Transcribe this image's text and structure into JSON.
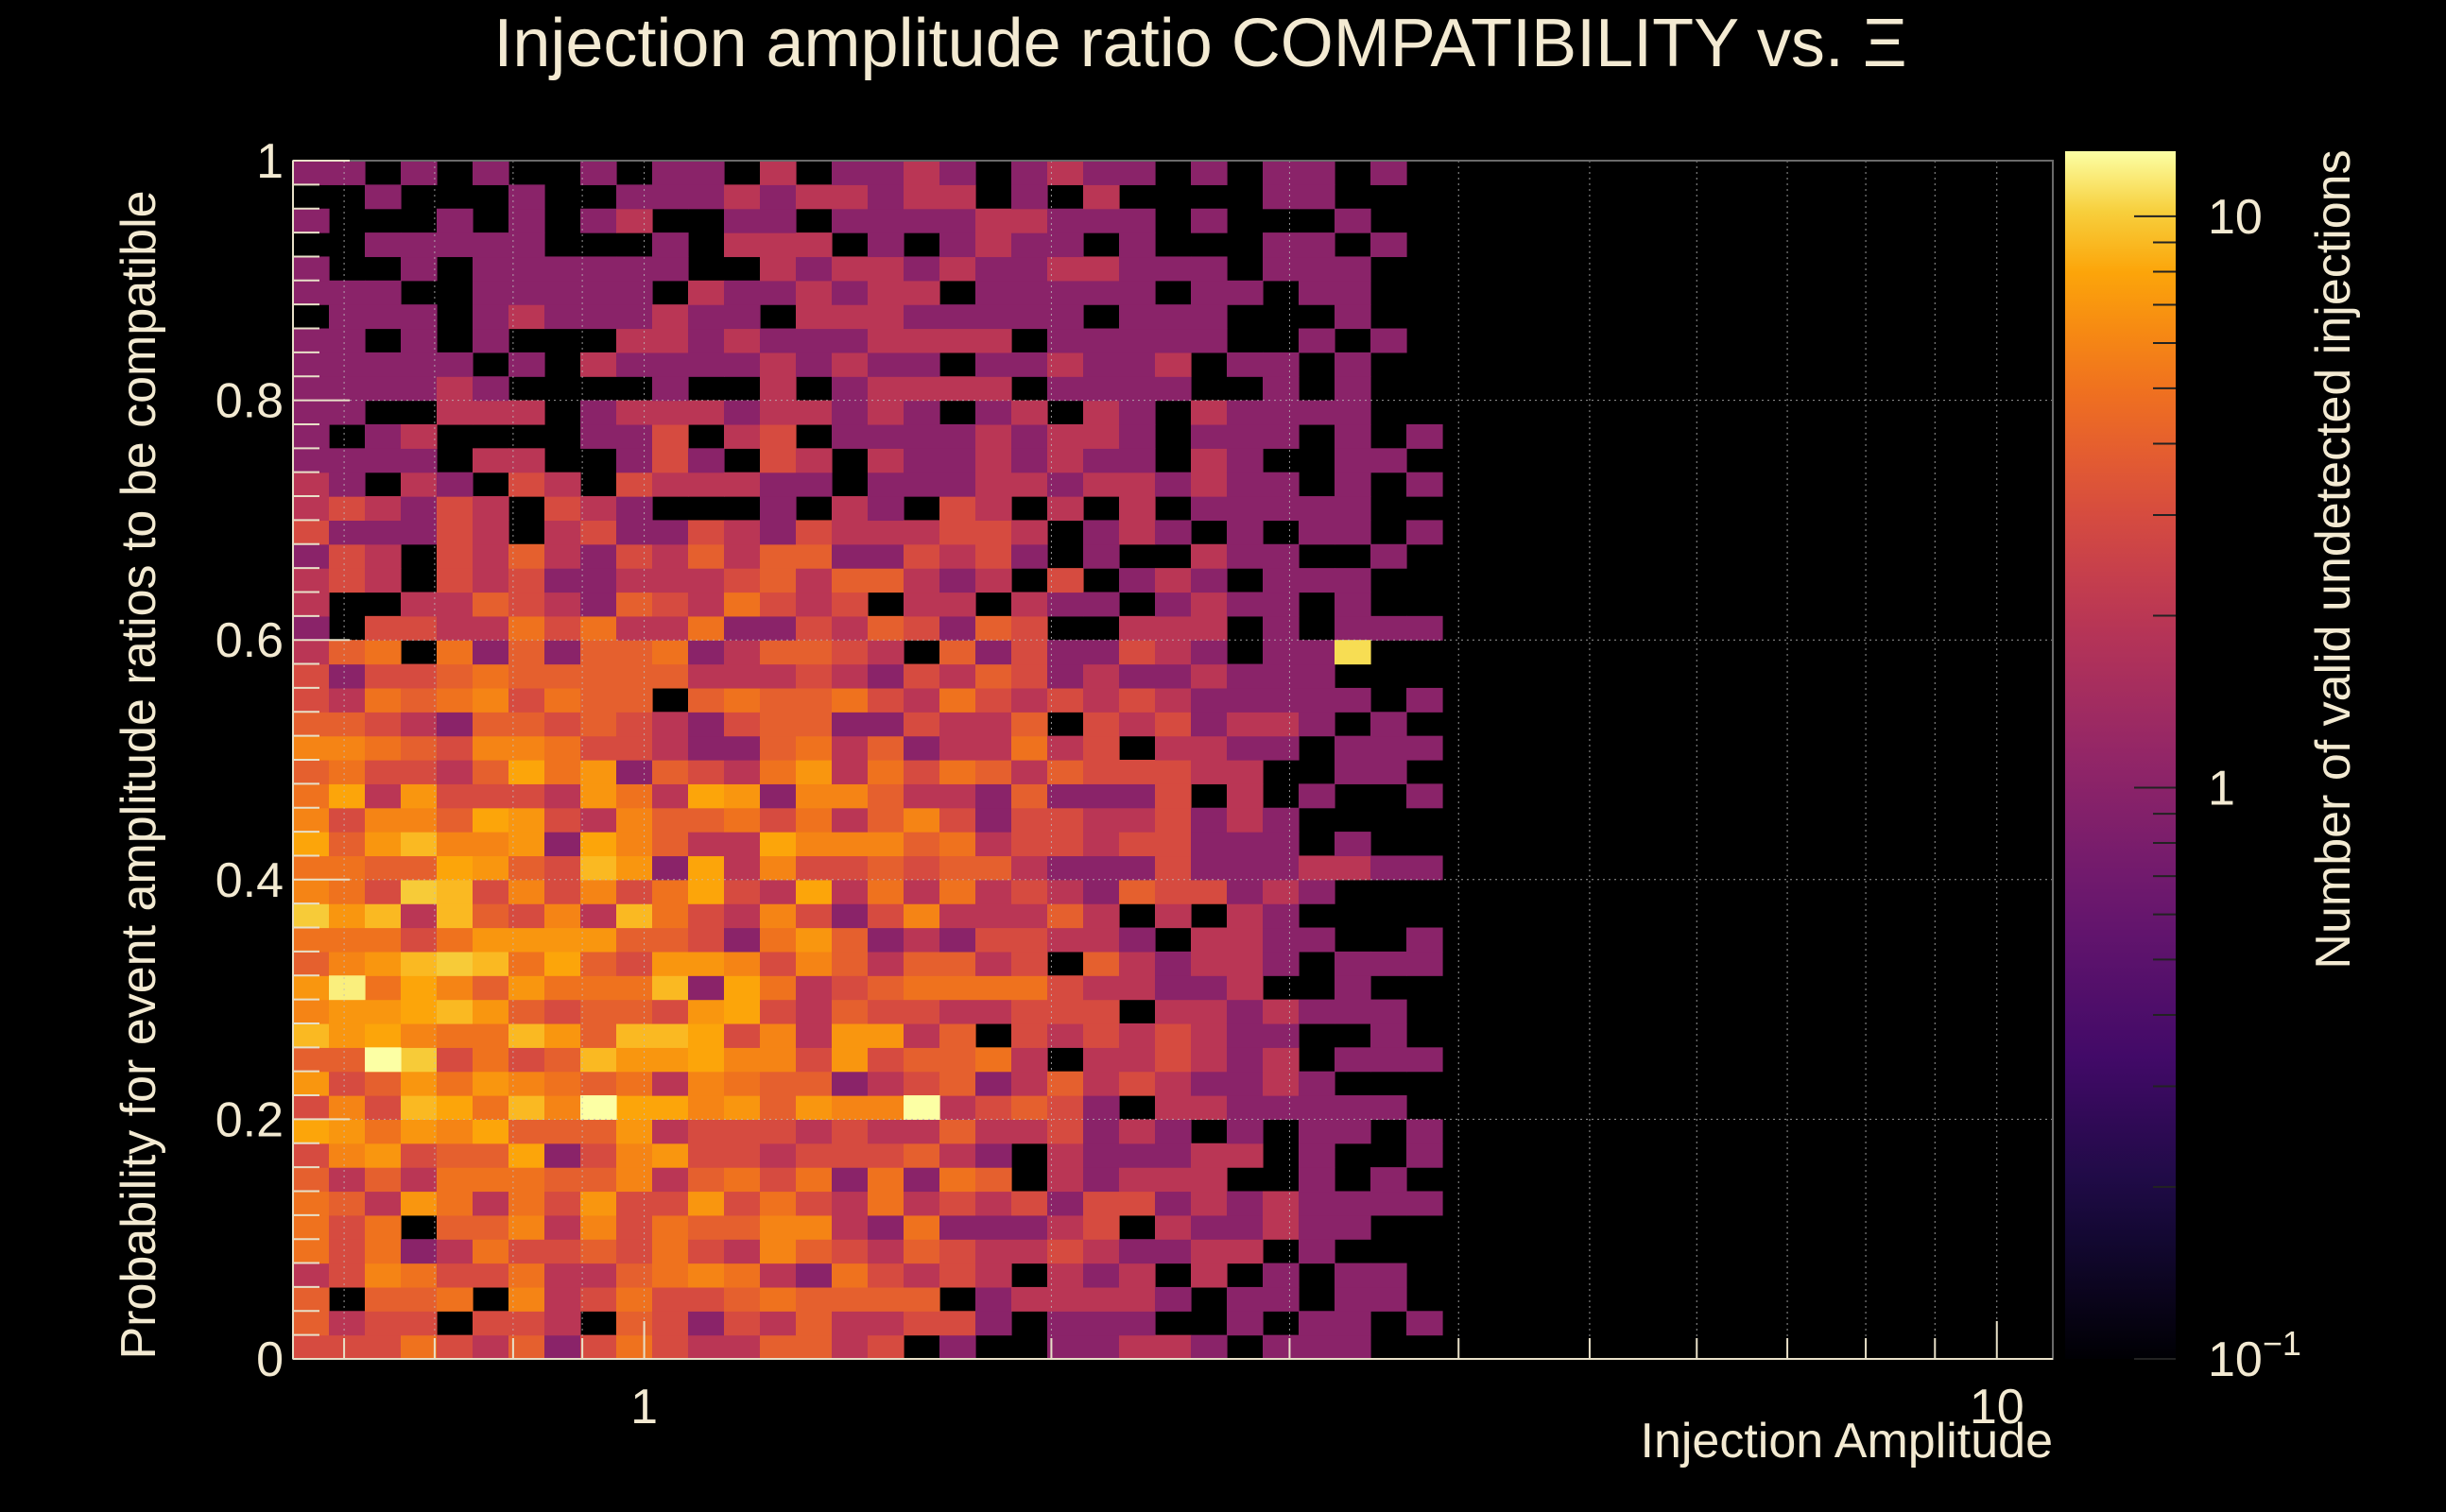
{
  "chart_data": {
    "type": "heatmap",
    "title": "Injection amplitude ratio COMPATIBILITY vs.  Ξ",
    "xlabel": "Injection Amplitude",
    "ylabel": "Probability for event amplitude ratios to be compatible",
    "zlabel": "Number of valid undetected injections",
    "x_scale": "log",
    "xlim": [
      0.55,
      11
    ],
    "ylim": [
      0,
      1
    ],
    "z_scale": "log",
    "zlim": [
      0.1,
      13
    ],
    "grid": true,
    "x_ticks": [
      {
        "value": 1,
        "label": "1"
      },
      {
        "value": 10,
        "label": "10"
      }
    ],
    "y_ticks": [
      {
        "value": 0,
        "label": "0"
      },
      {
        "value": 0.2,
        "label": "0.2"
      },
      {
        "value": 0.4,
        "label": "0.4"
      },
      {
        "value": 0.6,
        "label": "0.6"
      },
      {
        "value": 0.8,
        "label": "0.8"
      },
      {
        "value": 1,
        "label": "1"
      }
    ],
    "z_ticks": [
      {
        "value": 0.1,
        "base": "10",
        "exp": "−1"
      },
      {
        "value": 1,
        "base": "1",
        "exp": ""
      },
      {
        "value": 10,
        "base": "10",
        "exp": ""
      }
    ],
    "colormap": "inferno",
    "bins_x": 49,
    "bins_y": 50,
    "cell_summary": "counts range 0-13; highest density at small amplitude (0.55-2) and probability 0.1-0.5; sparse above amplitude 4",
    "peak_cells": [
      {
        "x": 0.66,
        "y": 0.25,
        "count": 13
      },
      {
        "x": 0.92,
        "y": 0.21,
        "count": 13
      },
      {
        "x": 1.65,
        "y": 0.21,
        "count": 13
      },
      {
        "x": 3.4,
        "y": 0.59,
        "count": 11
      },
      {
        "x": 0.6,
        "y": 0.31,
        "count": 12
      }
    ]
  }
}
